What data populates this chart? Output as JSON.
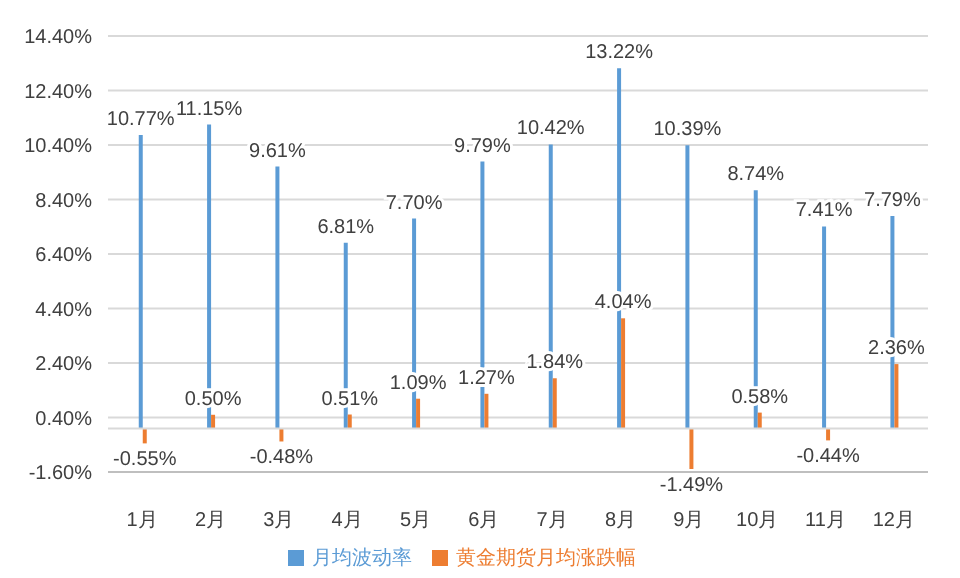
{
  "chart_data": {
    "type": "bar",
    "categories": [
      "1月",
      "2月",
      "3月",
      "4月",
      "5月",
      "6月",
      "7月",
      "8月",
      "9月",
      "10月",
      "11月",
      "12月"
    ],
    "series": [
      {
        "name": "月均波动率",
        "color": "#5b9bd5",
        "values": [
          10.77,
          11.15,
          9.61,
          6.81,
          7.7,
          9.79,
          10.42,
          13.22,
          10.39,
          8.74,
          7.41,
          7.79
        ],
        "value_labels": [
          "10.77%",
          "11.15%",
          "9.61%",
          "6.81%",
          "7.70%",
          "9.79%",
          "10.42%",
          "13.22%",
          "10.39%",
          "8.74%",
          "7.41%",
          "7.79%"
        ]
      },
      {
        "name": "黄金期货月均涨跌幅",
        "color": "#ed7d31",
        "values": [
          -0.55,
          0.5,
          -0.48,
          0.51,
          1.09,
          1.27,
          1.84,
          4.04,
          -1.49,
          0.58,
          -0.44,
          2.36
        ],
        "value_labels": [
          "-0.55%",
          "0.50%",
          "-0.48%",
          "0.51%",
          "1.09%",
          "1.27%",
          "1.84%",
          "4.04%",
          "-1.49%",
          "0.58%",
          "-0.44%",
          "2.36%"
        ]
      }
    ],
    "ylim": [
      -1.6,
      14.4
    ],
    "yticks": [
      {
        "value": -1.6,
        "label": "-1.60%"
      },
      {
        "value": 0.4,
        "label": "0.40%"
      },
      {
        "value": 2.4,
        "label": "2.40%"
      },
      {
        "value": 4.4,
        "label": "4.40%"
      },
      {
        "value": 6.4,
        "label": "6.40%"
      },
      {
        "value": 8.4,
        "label": "8.40%"
      },
      {
        "value": 10.4,
        "label": "10.40%"
      },
      {
        "value": 12.4,
        "label": "12.40%"
      },
      {
        "value": 14.4,
        "label": "14.40%"
      }
    ],
    "grid": "y",
    "legend": "bottom"
  }
}
